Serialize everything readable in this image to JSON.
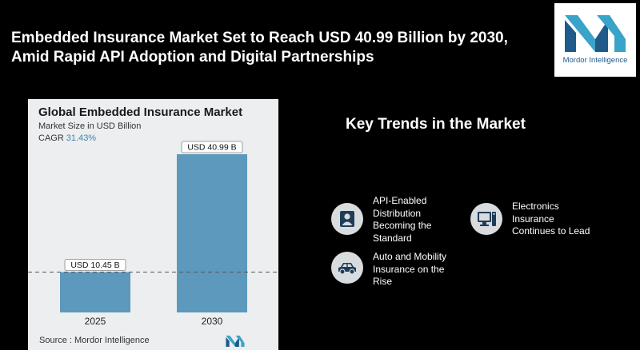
{
  "headline": {
    "line1": "Embedded Insurance Market Set to Reach USD 40.99 Billion by 2030,",
    "line2": "Amid Rapid API Adoption and Digital Partnerships"
  },
  "brand": {
    "name": "Mordor Intelligence",
    "color": "#1f5a8a",
    "accent": "#3aa3c9"
  },
  "chart_data": {
    "type": "bar",
    "title": "Global Embedded Insurance Market",
    "subtitle": "Market Size in USD Billion",
    "cagr_label": "CAGR",
    "cagr_value": "31.43%",
    "categories": [
      "2025",
      "2030"
    ],
    "values": [
      10.45,
      40.99
    ],
    "data_labels": [
      "USD 10.45 B",
      "USD 40.99 B"
    ],
    "bar_color": "#5d98bd",
    "source": "Source : Mordor Intelligence"
  },
  "trends": {
    "title": "Key Trends in the Market",
    "items": [
      {
        "label": "API-Enabled Distribution Becoming the Standard",
        "icon": "person-portrait-icon"
      },
      {
        "label": "Electronics Insurance Continues to Lead",
        "icon": "computer-monitor-icon"
      },
      {
        "label": "Auto and Mobility Insurance on the Rise",
        "icon": "car-icon"
      }
    ]
  }
}
